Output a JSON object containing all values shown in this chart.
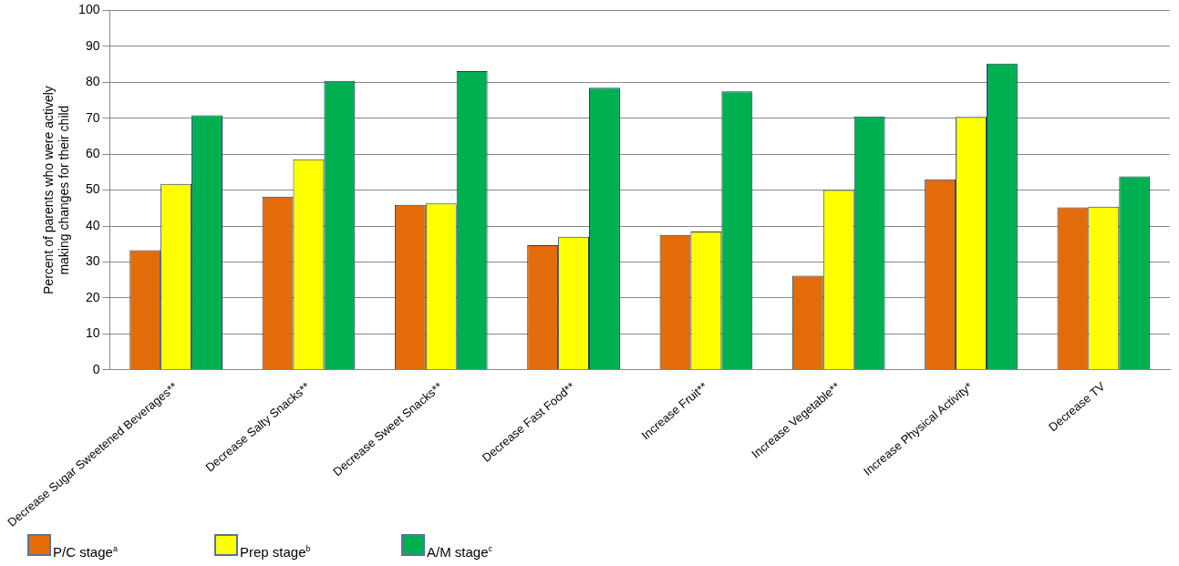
{
  "chart_data": {
    "type": "bar",
    "ylabel": "Percent of parents who were actively making changes for their child",
    "categories": [
      "Decrease Sugar Sweetened Beverages**",
      "Decrease Salty Snacks**",
      "Decrease Sweet Snacks**",
      "Decrease Fast Food**",
      "Increase Fruit**",
      "Increase Vegetable**",
      "Increase Physical Activity*",
      "Decrease TV"
    ],
    "series": [
      {
        "name": "P/C stage$^{a}$",
        "color": "#e36c0a",
        "values": [
          33.3,
          48.2,
          45.9,
          34.7,
          37.5,
          26.2,
          53.0,
          45.2
        ]
      },
      {
        "name": "Prep stage$^{b}$",
        "color": "#ffff00",
        "values": [
          51.7,
          58.6,
          46.3,
          37.0,
          38.5,
          50.0,
          70.4,
          45.4
        ]
      },
      {
        "name": "A/M stage$^{c}$",
        "color": "#00b050",
        "values": [
          70.8,
          80.4,
          83.1,
          78.5,
          77.5,
          70.5,
          85.2,
          53.8
        ]
      }
    ],
    "ylim": [
      0,
      100
    ],
    "yticks": [
      0,
      10,
      20,
      30,
      40,
      50,
      60,
      70,
      80,
      90,
      100
    ],
    "grid": "y",
    "legend": "bottom left"
  }
}
